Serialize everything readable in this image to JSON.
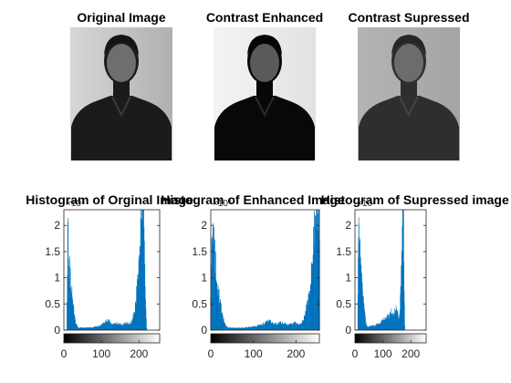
{
  "figure": {
    "image_titles": [
      "Original Image",
      "Contrast Enhanced",
      "Contrast Supressed"
    ]
  },
  "chart_data": [
    {
      "type": "bar",
      "title": "Histogram of Orginal Image",
      "exponent_label": "×10⁴",
      "xlim": [
        0,
        255
      ],
      "ylim": [
        0,
        2.3
      ],
      "xticks": [
        0,
        100,
        200
      ],
      "yticks": [
        0,
        0.5,
        1,
        1.5,
        2
      ],
      "x_range": [
        8,
        220
      ],
      "profile": [
        [
          8,
          0.55
        ],
        [
          10,
          2.2
        ],
        [
          12,
          1.7
        ],
        [
          14,
          1.3
        ],
        [
          17,
          0.95
        ],
        [
          20,
          0.75
        ],
        [
          24,
          0.5
        ],
        [
          28,
          0.32
        ],
        [
          32,
          0.12
        ],
        [
          38,
          0.05
        ],
        [
          50,
          0.04
        ],
        [
          70,
          0.05
        ],
        [
          90,
          0.07
        ],
        [
          100,
          0.1
        ],
        [
          108,
          0.15
        ],
        [
          118,
          0.18
        ],
        [
          125,
          0.14
        ],
        [
          132,
          0.11
        ],
        [
          140,
          0.14
        ],
        [
          148,
          0.12
        ],
        [
          155,
          0.09
        ],
        [
          162,
          0.12
        ],
        [
          170,
          0.14
        ],
        [
          176,
          0.11
        ],
        [
          182,
          0.18
        ],
        [
          190,
          0.45
        ],
        [
          196,
          0.9
        ],
        [
          200,
          1.5
        ],
        [
          204,
          2.2
        ],
        [
          208,
          2.4
        ],
        [
          212,
          2.4
        ],
        [
          215,
          1.2
        ],
        [
          218,
          0.4
        ],
        [
          220,
          0.05
        ]
      ]
    },
    {
      "type": "bar",
      "title": "Histogram of Enhanced Image",
      "exponent_label": "×10⁴",
      "xlim": [
        0,
        255
      ],
      "ylim": [
        0,
        2.3
      ],
      "xticks": [
        0,
        100,
        200
      ],
      "yticks": [
        0,
        0.5,
        1,
        1.5,
        2
      ],
      "x_range": [
        0,
        255
      ],
      "profile": [
        [
          0,
          0.55
        ],
        [
          3,
          2.1
        ],
        [
          6,
          1.7
        ],
        [
          10,
          1.3
        ],
        [
          14,
          0.95
        ],
        [
          18,
          0.7
        ],
        [
          23,
          0.45
        ],
        [
          28,
          0.25
        ],
        [
          34,
          0.1
        ],
        [
          40,
          0.05
        ],
        [
          60,
          0.04
        ],
        [
          85,
          0.05
        ],
        [
          105,
          0.07
        ],
        [
          118,
          0.1
        ],
        [
          128,
          0.14
        ],
        [
          138,
          0.17
        ],
        [
          146,
          0.13
        ],
        [
          154,
          0.11
        ],
        [
          162,
          0.14
        ],
        [
          172,
          0.12
        ],
        [
          180,
          0.09
        ],
        [
          190,
          0.12
        ],
        [
          200,
          0.14
        ],
        [
          208,
          0.11
        ],
        [
          216,
          0.18
        ],
        [
          226,
          0.45
        ],
        [
          234,
          0.9
        ],
        [
          240,
          1.5
        ],
        [
          245,
          2.2
        ],
        [
          249,
          2.4
        ],
        [
          253,
          2.4
        ],
        [
          255,
          1.5
        ]
      ]
    },
    {
      "type": "bar",
      "title": "Histogram of Supressed image",
      "exponent_label": "×10⁴",
      "xlim": [
        0,
        255
      ],
      "ylim": [
        0,
        2.3
      ],
      "xticks": [
        0,
        100,
        200
      ],
      "yticks": [
        0,
        0.5,
        1,
        1.5,
        2
      ],
      "x_range": [
        10,
        178
      ],
      "profile": [
        [
          10,
          0.6
        ],
        [
          13,
          2.3
        ],
        [
          16,
          1.9
        ],
        [
          19,
          1.5
        ],
        [
          22,
          1.05
        ],
        [
          26,
          0.8
        ],
        [
          30,
          0.55
        ],
        [
          34,
          0.35
        ],
        [
          38,
          0.15
        ],
        [
          45,
          0.06
        ],
        [
          55,
          0.07
        ],
        [
          70,
          0.09
        ],
        [
          85,
          0.12
        ],
        [
          95,
          0.16
        ],
        [
          105,
          0.2
        ],
        [
          115,
          0.24
        ],
        [
          125,
          0.3
        ],
        [
          132,
          0.36
        ],
        [
          138,
          0.32
        ],
        [
          146,
          0.38
        ],
        [
          152,
          0.34
        ],
        [
          158,
          0.2
        ],
        [
          162,
          0.6
        ],
        [
          166,
          1.2
        ],
        [
          169,
          1.9
        ],
        [
          171,
          2.4
        ],
        [
          174,
          2.4
        ],
        [
          176,
          1.0
        ],
        [
          178,
          0.1
        ]
      ]
    }
  ]
}
